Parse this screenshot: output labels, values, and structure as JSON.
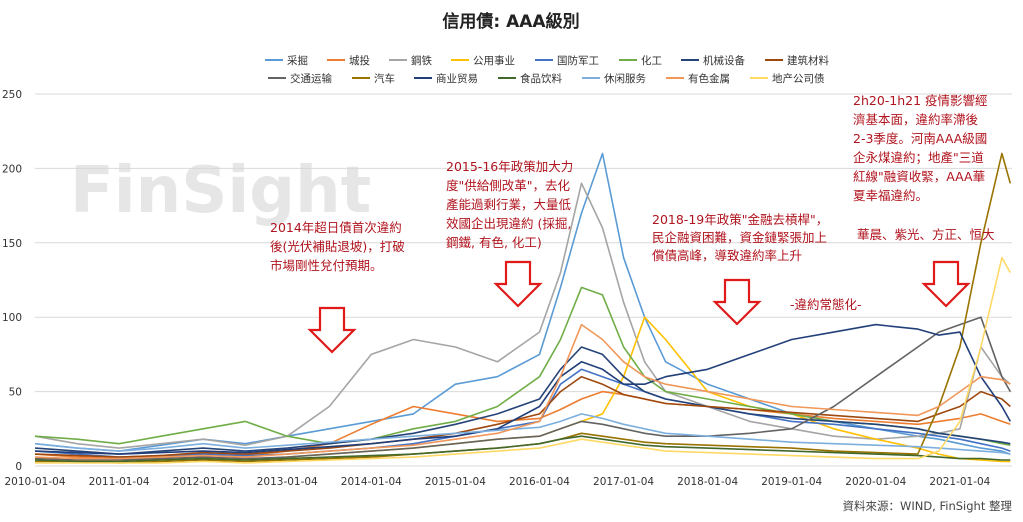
{
  "chart_data": {
    "type": "line",
    "title": "信用債: AAA級別",
    "xlabel": "",
    "ylabel": "",
    "ylim": [
      0,
      250
    ],
    "yticks": [
      0,
      50,
      100,
      150,
      200,
      250
    ],
    "x_tick_labels": [
      "2010-01-04",
      "2011-01-04",
      "2012-01-04",
      "2013-01-04",
      "2014-01-04",
      "2015-01-04",
      "2016-01-04",
      "2017-01-04",
      "2018-01-04",
      "2019-01-04",
      "2020-01-04",
      "2021-01-04"
    ],
    "grid": true,
    "legend_position": "top",
    "x": [
      2010.0,
      2010.5,
      2011.0,
      2011.5,
      2012.0,
      2012.5,
      2013.0,
      2013.5,
      2014.0,
      2014.5,
      2015.0,
      2015.5,
      2016.0,
      2016.25,
      2016.5,
      2016.75,
      2017.0,
      2017.25,
      2017.5,
      2018.0,
      2018.5,
      2019.0,
      2019.5,
      2020.0,
      2020.5,
      2020.75,
      2021.0,
      2021.25,
      2021.5,
      2021.6
    ],
    "series": [
      {
        "name": "采掘",
        "color": "#5b9bd5",
        "values": [
          15,
          12,
          10,
          14,
          18,
          15,
          20,
          25,
          30,
          35,
          55,
          60,
          75,
          120,
          170,
          210,
          140,
          100,
          70,
          55,
          45,
          35,
          30,
          25,
          20,
          18,
          15,
          12,
          10,
          8
        ]
      },
      {
        "name": "城投",
        "color": "#ed7d31",
        "values": [
          8,
          6,
          5,
          6,
          8,
          7,
          10,
          15,
          28,
          40,
          35,
          30,
          32,
          38,
          45,
          50,
          48,
          45,
          42,
          40,
          38,
          35,
          32,
          30,
          28,
          30,
          32,
          35,
          30,
          28
        ]
      },
      {
        "name": "鋼铁",
        "color": "#a5a5a5",
        "values": [
          20,
          15,
          12,
          15,
          18,
          14,
          20,
          40,
          75,
          85,
          80,
          70,
          90,
          130,
          190,
          160,
          110,
          70,
          50,
          40,
          30,
          25,
          20,
          18,
          20,
          22,
          25,
          80,
          60,
          55
        ]
      },
      {
        "name": "公用事业",
        "color": "#ffc000",
        "values": [
          5,
          4,
          3,
          4,
          5,
          4,
          6,
          8,
          10,
          12,
          15,
          18,
          20,
          25,
          30,
          35,
          60,
          100,
          85,
          50,
          40,
          35,
          25,
          18,
          12,
          8,
          5,
          4,
          3,
          3
        ]
      },
      {
        "name": "国防军工",
        "color": "#4472c4",
        "values": [
          10,
          8,
          6,
          7,
          8,
          7,
          8,
          10,
          12,
          15,
          20,
          25,
          30,
          55,
          65,
          60,
          55,
          50,
          45,
          40,
          35,
          30,
          28,
          25,
          22,
          20,
          18,
          15,
          12,
          10
        ]
      },
      {
        "name": "化工",
        "color": "#70ad47",
        "values": [
          20,
          18,
          15,
          20,
          25,
          30,
          20,
          15,
          18,
          25,
          30,
          40,
          60,
          85,
          120,
          115,
          80,
          60,
          50,
          45,
          40,
          35,
          30,
          28,
          25,
          22,
          20,
          18,
          15,
          14
        ]
      },
      {
        "name": "机械设备",
        "color": "#264478",
        "values": [
          12,
          10,
          8,
          10,
          12,
          10,
          12,
          15,
          18,
          22,
          28,
          35,
          45,
          65,
          80,
          75,
          60,
          50,
          45,
          40,
          35,
          32,
          30,
          28,
          25,
          22,
          20,
          18,
          16,
          15
        ]
      },
      {
        "name": "建筑材料",
        "color": "#9e480e",
        "values": [
          8,
          7,
          6,
          7,
          9,
          8,
          10,
          12,
          15,
          18,
          22,
          28,
          35,
          50,
          60,
          55,
          48,
          45,
          42,
          40,
          38,
          36,
          34,
          32,
          30,
          35,
          40,
          50,
          45,
          40
        ]
      },
      {
        "name": "交通运输",
        "color": "#636363",
        "values": [
          5,
          4,
          4,
          5,
          6,
          5,
          6,
          8,
          10,
          12,
          15,
          18,
          20,
          25,
          30,
          28,
          25,
          22,
          20,
          20,
          22,
          25,
          40,
          60,
          80,
          90,
          95,
          100,
          60,
          50
        ]
      },
      {
        "name": "汽车",
        "color": "#997300",
        "values": [
          3,
          3,
          2,
          3,
          4,
          3,
          4,
          5,
          6,
          8,
          10,
          12,
          15,
          18,
          22,
          20,
          18,
          16,
          15,
          14,
          13,
          12,
          10,
          9,
          8,
          40,
          80,
          150,
          210,
          190
        ]
      },
      {
        "name": "商业贸易",
        "color": "#223f7a",
        "values": [
          10,
          9,
          8,
          9,
          10,
          9,
          11,
          13,
          15,
          18,
          20,
          25,
          40,
          60,
          70,
          65,
          55,
          55,
          60,
          65,
          75,
          85,
          90,
          95,
          92,
          88,
          90,
          60,
          40,
          30
        ]
      },
      {
        "name": "食品饮料",
        "color": "#43682b",
        "values": [
          4,
          3,
          3,
          4,
          5,
          4,
          5,
          6,
          7,
          8,
          10,
          12,
          15,
          18,
          20,
          18,
          16,
          14,
          13,
          12,
          11,
          10,
          9,
          8,
          7,
          6,
          5,
          5,
          4,
          4
        ]
      },
      {
        "name": "休闲服务",
        "color": "#7cafdd",
        "values": [
          15,
          12,
          10,
          12,
          15,
          12,
          14,
          16,
          18,
          20,
          22,
          24,
          26,
          30,
          35,
          32,
          28,
          25,
          22,
          20,
          18,
          16,
          15,
          14,
          13,
          12,
          11,
          10,
          9,
          8
        ]
      },
      {
        "name": "有色金属",
        "color": "#f1975a",
        "values": [
          6,
          5,
          5,
          6,
          7,
          6,
          8,
          10,
          12,
          14,
          18,
          22,
          30,
          60,
          95,
          85,
          70,
          60,
          55,
          50,
          45,
          40,
          38,
          36,
          34,
          40,
          50,
          60,
          58,
          55
        ]
      },
      {
        "name": "地产公司债",
        "color": "#ffd966",
        "values": [
          2,
          2,
          2,
          2,
          3,
          2,
          3,
          4,
          5,
          6,
          8,
          10,
          12,
          15,
          18,
          16,
          14,
          12,
          10,
          9,
          8,
          7,
          6,
          5,
          5,
          10,
          30,
          80,
          140,
          130
        ]
      }
    ],
    "annotations": [
      {
        "lines": [
          "2014年超日債首次違約",
          "後(光伏補貼退坡)，打破",
          "市場剛性兌付預期。"
        ]
      },
      {
        "lines": [
          "2015-16年政策加大力",
          "度\"供給側改革\"，去化",
          "產能過剩行業，大量低",
          "效國企出現違約 (採掘,",
          "鋼鐵, 有色, 化工)"
        ]
      },
      {
        "lines": [
          "2018-19年政策\"金融去槓桿\"，",
          "民企融資困難，資金鏈緊張加上",
          "償債高峰，導致違約率上升"
        ]
      },
      {
        "lines": [
          "-違約常態化-"
        ]
      },
      {
        "lines": [
          "2h20-1h21 疫情影響經",
          "濟基本面，違約率滯後",
          "2-3季度。河南AAA級國",
          "企永煤違約；地產\"三道",
          "紅線\"融資收緊，AAA華",
          "夏幸福違約。"
        ]
      },
      {
        "lines": [
          "華晨、紫光、方正、恒大"
        ],
        "color": "#e8a000"
      }
    ],
    "watermark": "FinSight",
    "source": "資料來源：WIND, FinSight 整理"
  }
}
